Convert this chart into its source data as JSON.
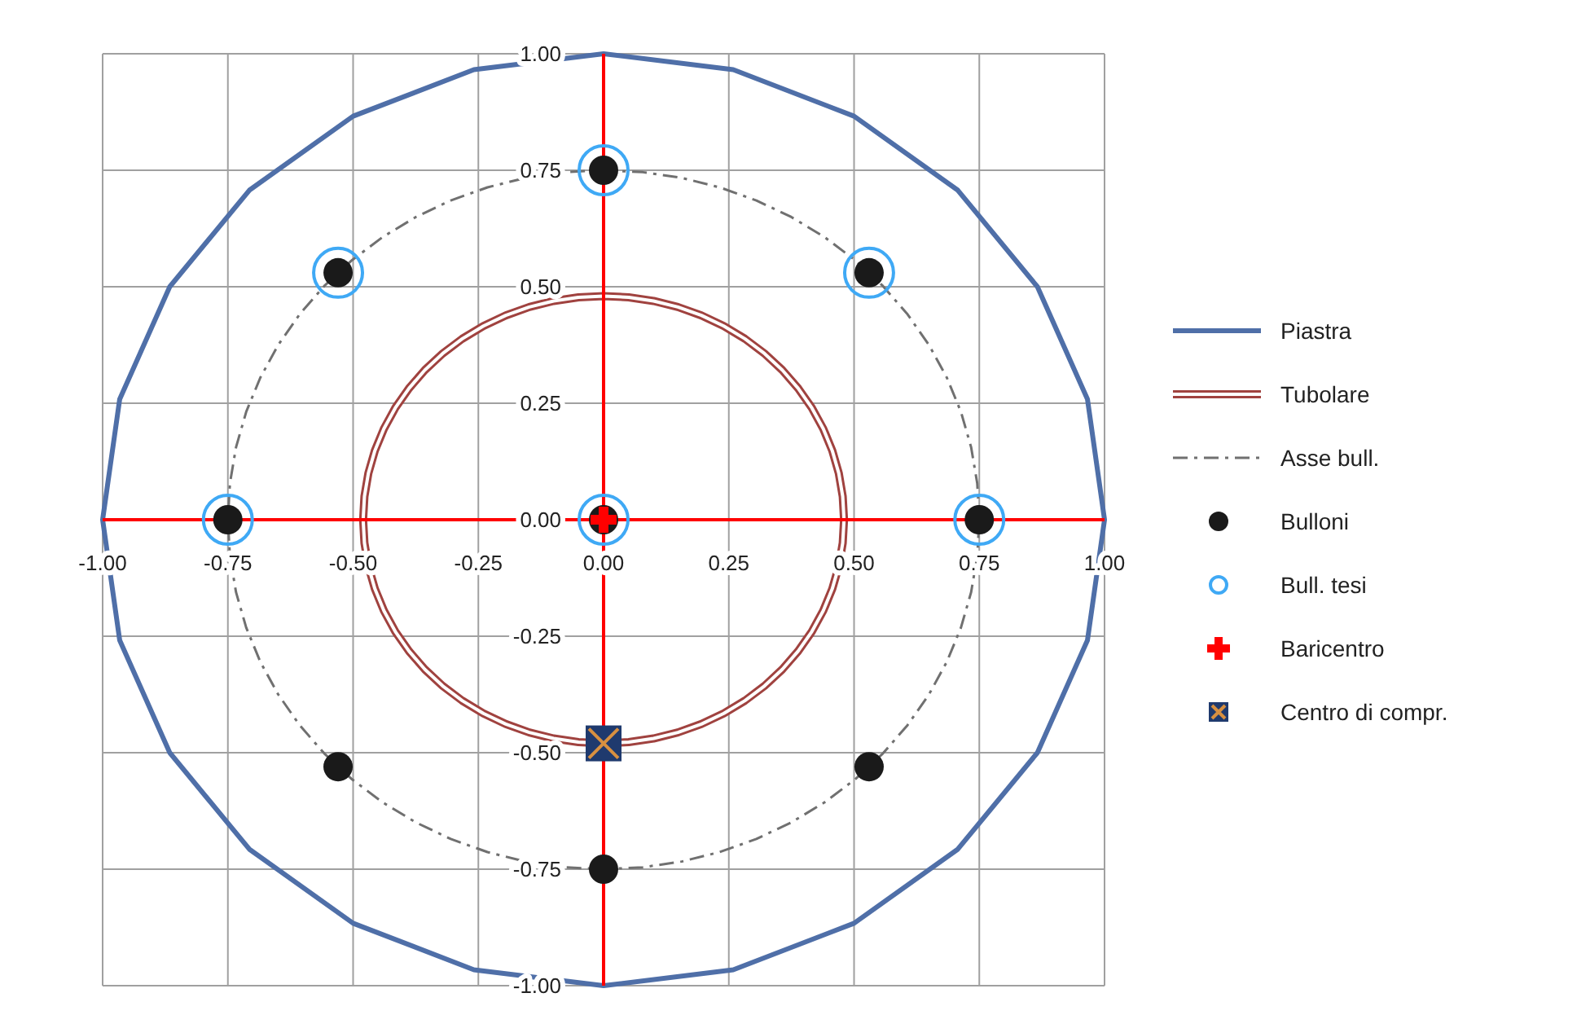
{
  "chart_data": {
    "type": "scatter",
    "xlim": [
      -1,
      1
    ],
    "ylim": [
      -1,
      1
    ],
    "xticks": [
      {
        "value": -1,
        "label": "-1.00"
      },
      {
        "value": -0.75,
        "label": "-0.75"
      },
      {
        "value": -0.5,
        "label": "-0.50"
      },
      {
        "value": -0.25,
        "label": "-0.25"
      },
      {
        "value": 0,
        "label": "0.00"
      },
      {
        "value": 0.25,
        "label": "0.25"
      },
      {
        "value": 0.5,
        "label": "0.50"
      },
      {
        "value": 0.75,
        "label": "0.75"
      },
      {
        "value": 1,
        "label": "1.00"
      }
    ],
    "yticks": [
      {
        "value": -1,
        "label": "-1.00"
      },
      {
        "value": -0.75,
        "label": "-0.75"
      },
      {
        "value": -0.5,
        "label": "-0.50"
      },
      {
        "value": -0.25,
        "label": "-0.25"
      },
      {
        "value": 0,
        "label": "0.00"
      },
      {
        "value": 0.25,
        "label": "0.25"
      },
      {
        "value": 0.5,
        "label": "0.50"
      },
      {
        "value": 0.75,
        "label": "0.75"
      },
      {
        "value": 1,
        "label": "1.00"
      }
    ],
    "grid": true,
    "legend": "right",
    "annotations": [
      "Piastra",
      "Tubolare",
      "Asse bull."
    ],
    "series": [
      {
        "name": "Bulloni",
        "color": "#1a1a1a",
        "marker": "circle",
        "x": [
          0,
          0.53,
          -0.53,
          0.75,
          -0.75,
          0.53,
          -0.53,
          0,
          0
        ],
        "values": [
          0.75,
          0.53,
          0.53,
          0,
          0,
          -0.53,
          -0.53,
          -0.75,
          0
        ]
      },
      {
        "name": "Bull. tesi",
        "color": "#3fa9f5",
        "marker": "circle",
        "x": [
          0,
          0.53,
          -0.53,
          0.75,
          -0.75,
          0
        ],
        "values": [
          0.75,
          0.53,
          0.53,
          0,
          0,
          0
        ]
      },
      {
        "name": "Baricentro",
        "color": "#ff0000",
        "marker": "cross",
        "x": [
          0
        ],
        "values": [
          0
        ]
      },
      {
        "name": "Centro di compr.",
        "color": "#1f3a6e",
        "marker": "square",
        "x": [
          0
        ],
        "values": [
          -0.48
        ]
      }
    ]
  }
}
